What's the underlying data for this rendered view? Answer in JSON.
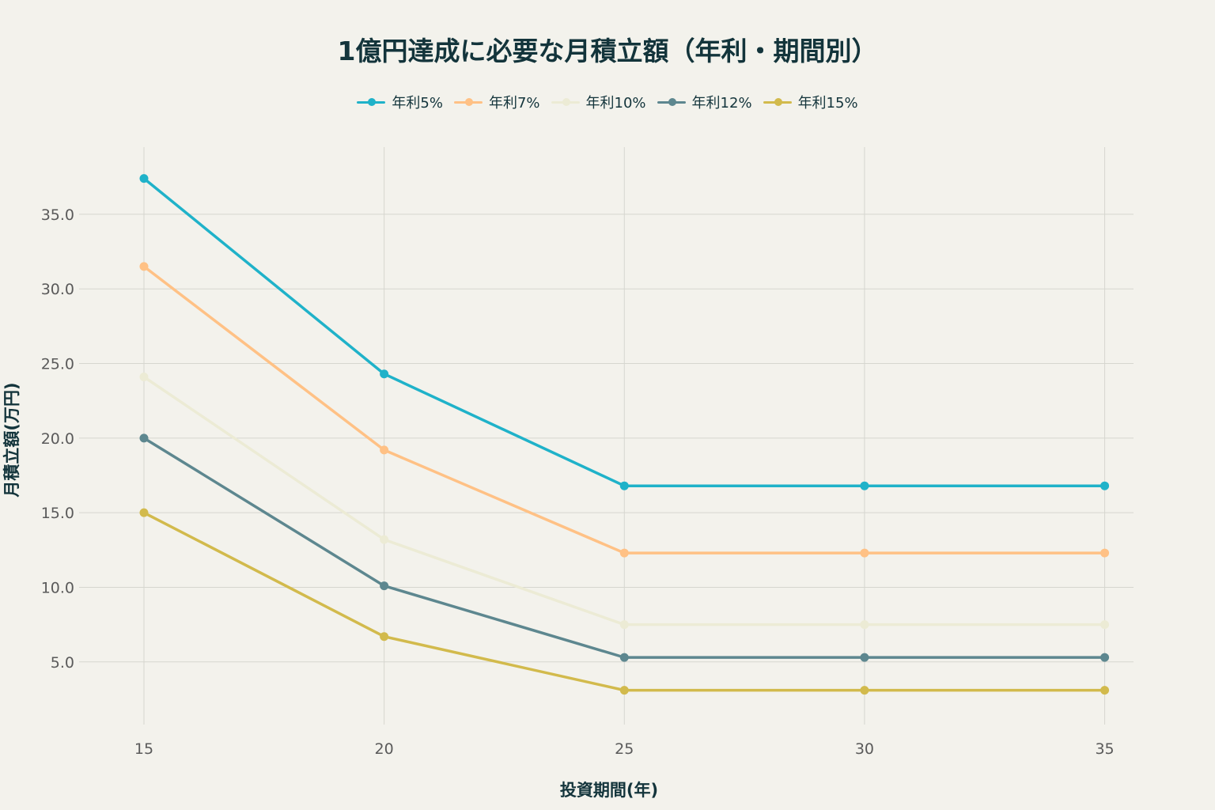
{
  "chart_data": {
    "type": "line",
    "title": "1億円達成に必要な月積立額（年利・期間別）",
    "xlabel": "投資期間(年)",
    "ylabel": "月積立額(万円)",
    "x": [
      15,
      20,
      25,
      30,
      35
    ],
    "x_ticks": [
      "15",
      "20",
      "25",
      "30",
      "35"
    ],
    "y_ticks": [
      "5.0",
      "10.0",
      "15.0",
      "20.0",
      "25.0",
      "30.0",
      "35.0"
    ],
    "y_tick_values": [
      5,
      10,
      15,
      20,
      25,
      30,
      35
    ],
    "xlim": [
      13.65,
      35.6
    ],
    "ylim": [
      0.8,
      39.5
    ],
    "grid": true,
    "legend_position": "top",
    "series": [
      {
        "name": "年利5%",
        "color": "#1fb2c9",
        "values": [
          37.4,
          24.3,
          16.8,
          16.8,
          16.8
        ]
      },
      {
        "name": "年利7%",
        "color": "#ffc185",
        "values": [
          31.5,
          19.2,
          12.3,
          12.3,
          12.3
        ]
      },
      {
        "name": "年利10%",
        "color": "#ecebd5",
        "values": [
          24.1,
          13.2,
          7.5,
          7.5,
          7.5
        ]
      },
      {
        "name": "年利12%",
        "color": "#5d878f",
        "values": [
          20.0,
          10.1,
          5.3,
          5.3,
          5.3
        ]
      },
      {
        "name": "年利15%",
        "color": "#d2ba4c",
        "values": [
          15.0,
          6.7,
          3.1,
          3.1,
          3.1
        ]
      }
    ]
  }
}
